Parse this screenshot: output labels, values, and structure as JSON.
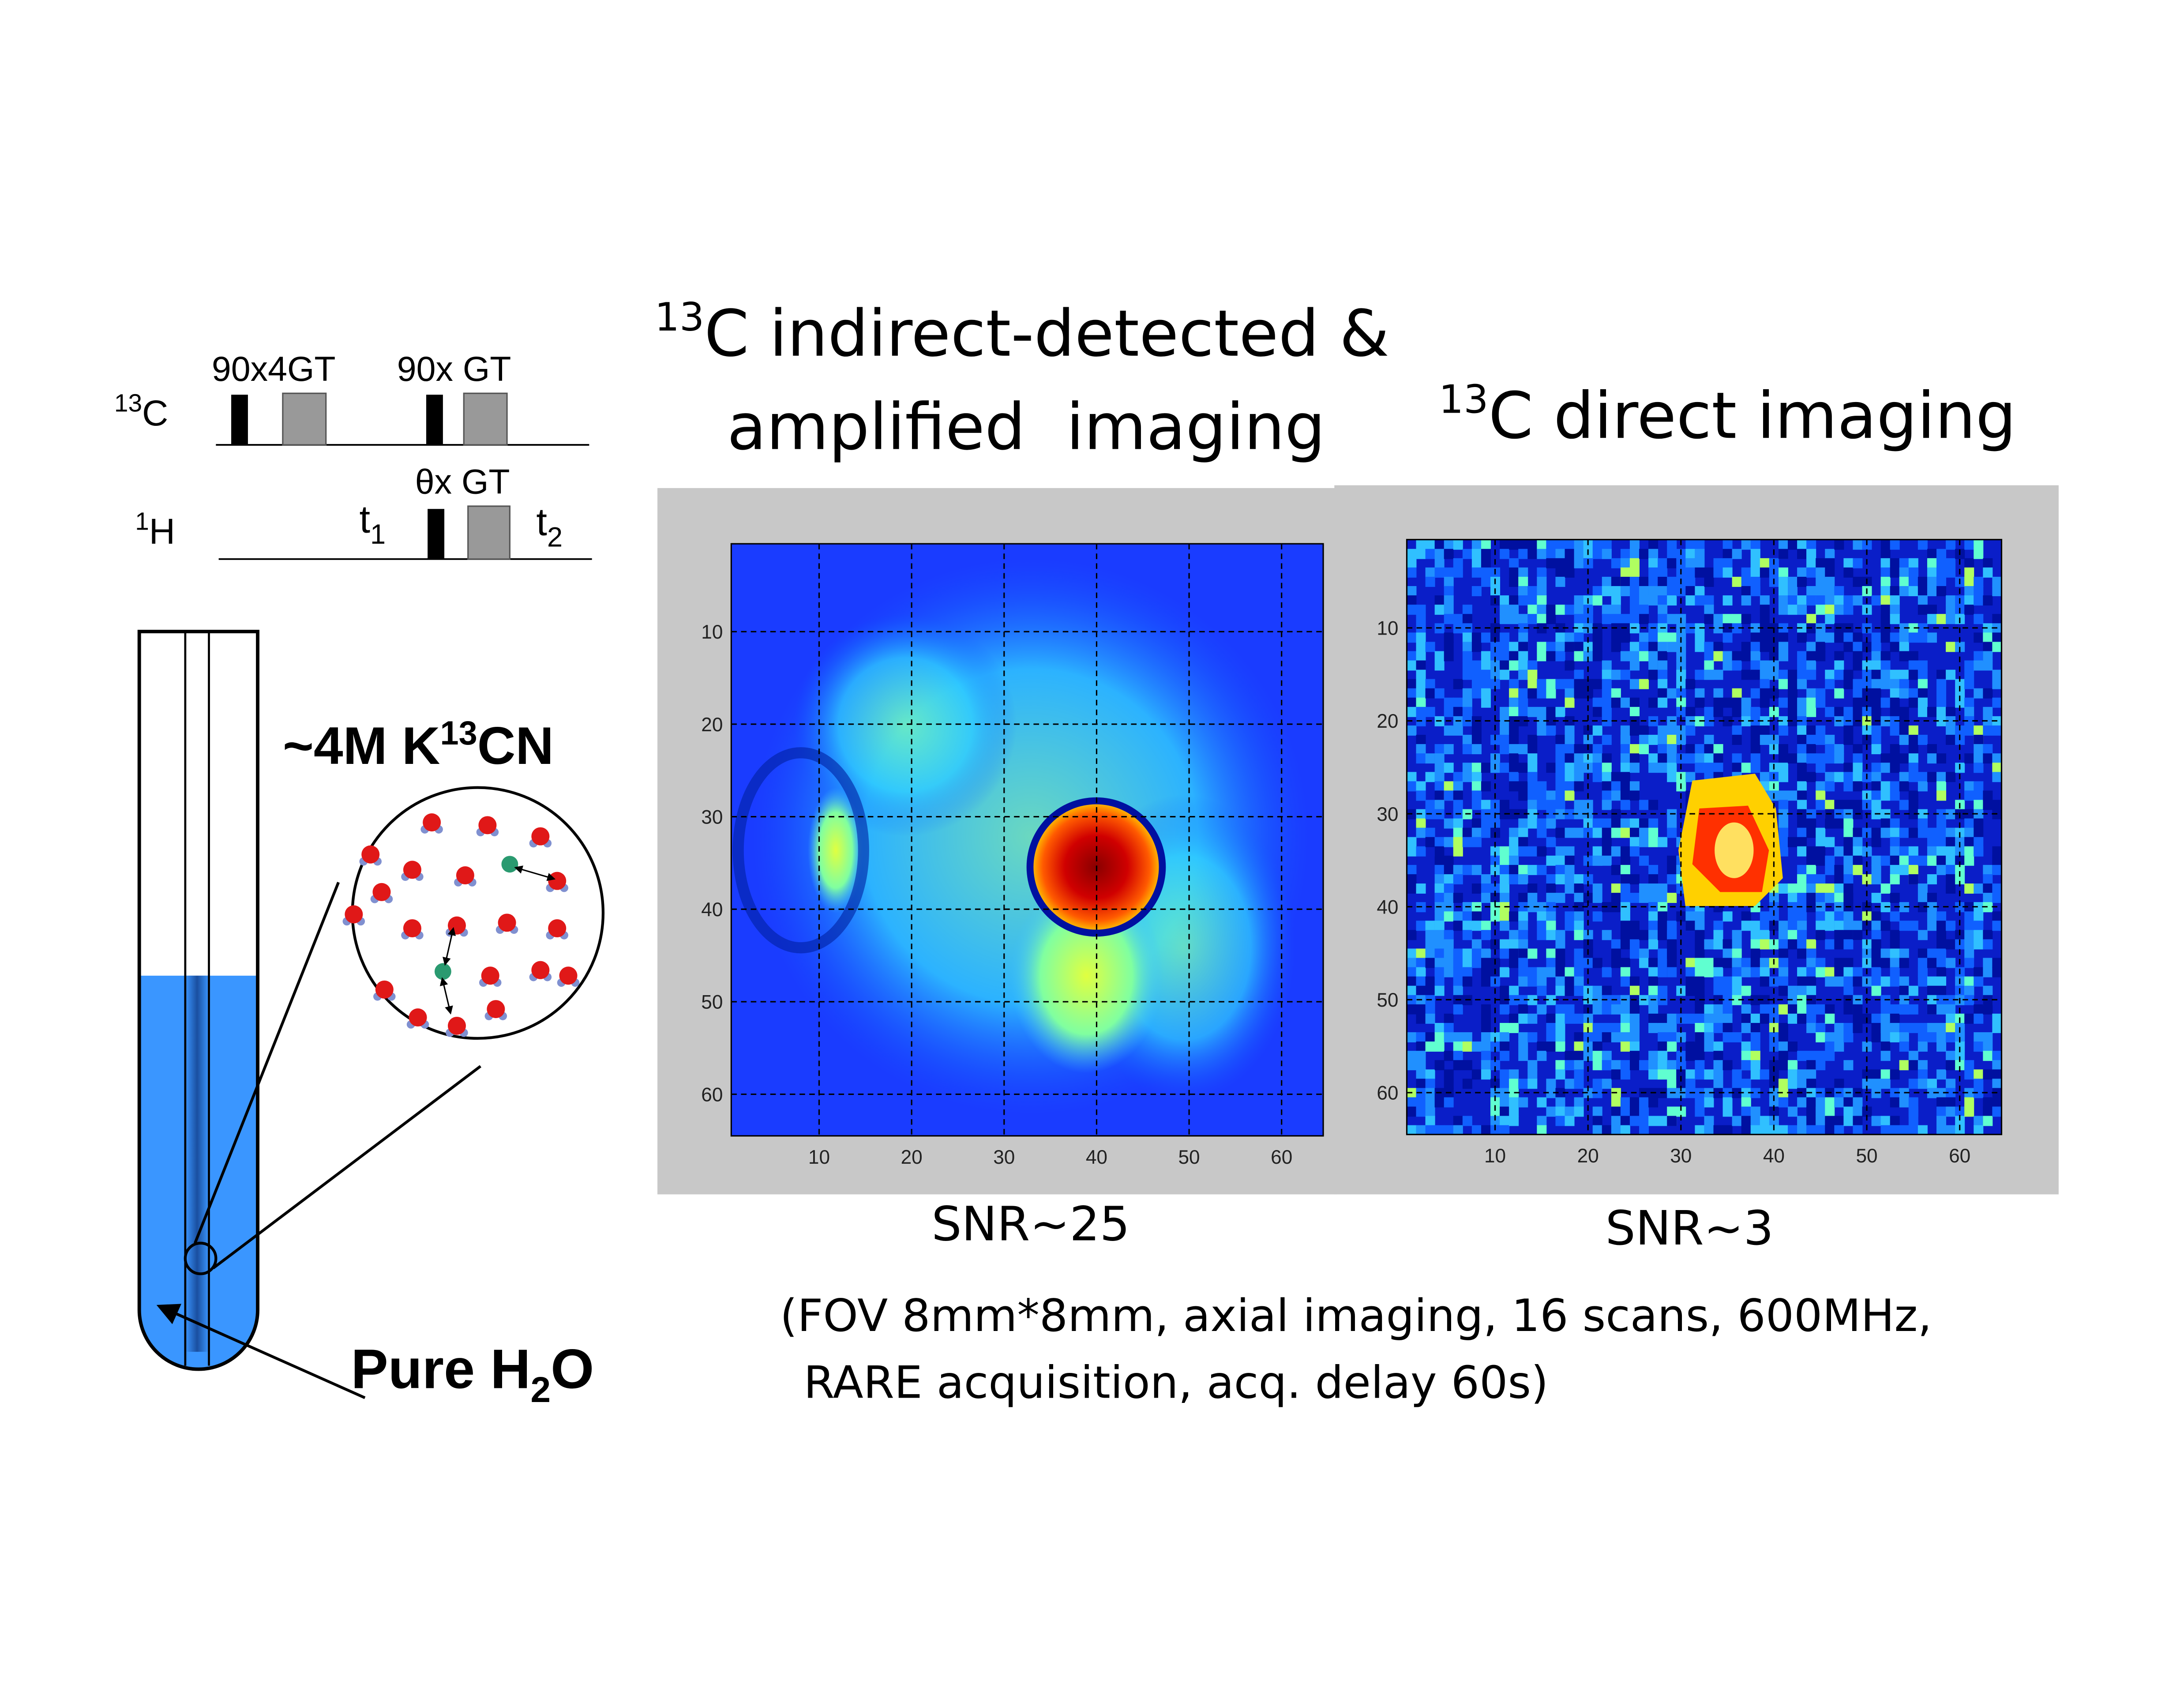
{
  "pulse_sequence": {
    "c13_label": {
      "sup": "13",
      "text": "C"
    },
    "h1_label": {
      "sup": "1",
      "text": "H"
    },
    "c13_pulses": [
      "90x4GT",
      "90x GT"
    ],
    "h1_pulse": "θx GT",
    "t1": {
      "text": "t",
      "sub": "1"
    },
    "t2": {
      "text": "t",
      "sub": "2"
    }
  },
  "sample": {
    "solute": {
      "pre": "~4M K",
      "sup": "13",
      "post": "CN"
    },
    "solvent": {
      "pre": "Pure H",
      "sub": "2",
      "post": "O"
    }
  },
  "panels": [
    {
      "title_sup": "13",
      "title_lines": [
        "C indirect-detected &",
        "amplified  imaging"
      ],
      "xticks": [
        10,
        20,
        30,
        40,
        50,
        60
      ],
      "yticks": [
        10,
        20,
        30,
        40,
        50,
        60
      ],
      "snr": "SNR~25"
    },
    {
      "title_sup": "13",
      "title_lines": [
        "C direct imaging"
      ],
      "xticks": [
        10,
        20,
        30,
        40,
        50,
        60
      ],
      "yticks": [
        10,
        20,
        30,
        40,
        50,
        60
      ],
      "snr": "SNR~3"
    }
  ],
  "conditions": [
    "(FOV 8mm*8mm, axial imaging, 16 scans, 600MHz,",
    "RARE acquisition, acq. delay 60s)"
  ]
}
